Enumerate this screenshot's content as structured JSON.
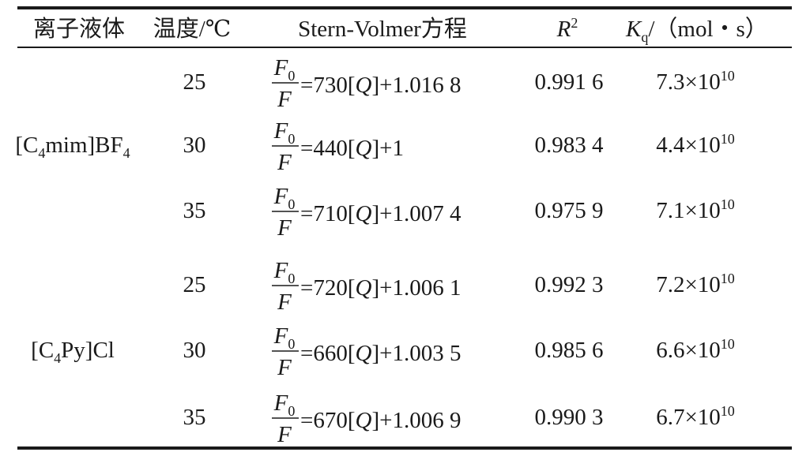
{
  "header": {
    "cells": [
      "离子液体",
      "温度/℃",
      "Stern-Volmer方程",
      {
        "base": "R",
        "sup": "2"
      },
      {
        "base": "K",
        "sub": "q",
        "unit": "/（mol・s）"
      }
    ]
  },
  "groups": [
    {
      "ionic_liquid": [
        "[C",
        "4",
        "mim]BF",
        "4"
      ],
      "rows": [
        {
          "temperature": "25",
          "equation": {
            "numerator": [
              "F",
              "0"
            ],
            "denominator": "F",
            "rhs": [
              "=730[",
              "Q",
              "]+1.016 8"
            ]
          },
          "r2": "0.991 6",
          "kq": [
            "7.3×10",
            "10"
          ]
        },
        {
          "temperature": "30",
          "equation": {
            "numerator": [
              "F",
              "0"
            ],
            "denominator": "F",
            "rhs": [
              "=440[",
              "Q",
              "]+1"
            ]
          },
          "r2": "0.983 4",
          "kq": [
            "4.4×10",
            "10"
          ]
        },
        {
          "temperature": "35",
          "equation": {
            "numerator": [
              "F",
              "0"
            ],
            "denominator": "F",
            "rhs": [
              "=710[",
              "Q",
              "]+1.007 4"
            ]
          },
          "r2": "0.975 9",
          "kq": [
            "7.1×10",
            "10"
          ]
        }
      ]
    },
    {
      "ionic_liquid": [
        "[C",
        "4",
        "Py]Cl"
      ],
      "rows": [
        {
          "temperature": "25",
          "equation": {
            "numerator": [
              "F",
              "0"
            ],
            "denominator": "F",
            "rhs": [
              "=720[",
              "Q",
              "]+1.006 1"
            ]
          },
          "r2": "0.992 3",
          "kq": [
            "7.2×10",
            "10"
          ]
        },
        {
          "temperature": "30",
          "equation": {
            "numerator": [
              "F",
              "0"
            ],
            "denominator": "F",
            "rhs": [
              "=660[",
              "Q",
              "]+1.003 5"
            ]
          },
          "r2": "0.985 6",
          "kq": [
            "6.6×10",
            "10"
          ]
        },
        {
          "temperature": "35",
          "equation": {
            "numerator": [
              "F",
              "0"
            ],
            "denominator": "F",
            "rhs": [
              "=670[",
              "Q",
              "]+1.006 9"
            ]
          },
          "r2": "0.990 3",
          "kq": [
            "6.7×10",
            "10"
          ]
        }
      ]
    }
  ]
}
